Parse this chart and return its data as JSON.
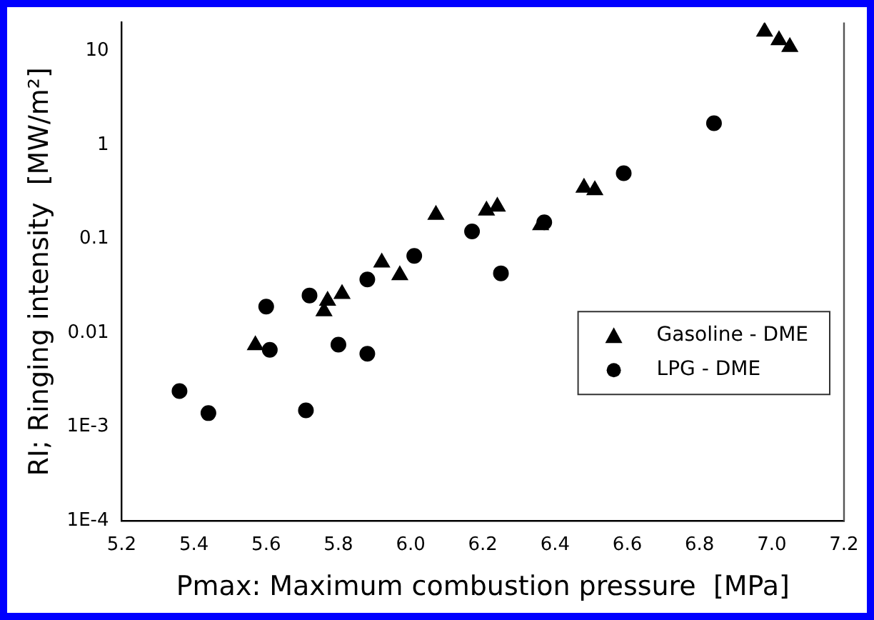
{
  "chart_data": {
    "type": "scatter",
    "xlabel": "Pmax: Maximum combustion pressure  [MPa]",
    "ylabel": "RI; Ringing intensity  [MW/m²]",
    "log": "y",
    "xlim": [
      5.2,
      7.2
    ],
    "xticks": [
      {
        "value": 5.2,
        "label": "5.2"
      },
      {
        "value": 5.4,
        "label": "5.4"
      },
      {
        "value": 5.6,
        "label": "5.6"
      },
      {
        "value": 5.8,
        "label": "5.8"
      },
      {
        "value": 6.0,
        "label": "6.0"
      },
      {
        "value": 6.2,
        "label": "6.2"
      },
      {
        "value": 6.4,
        "label": "6.4"
      },
      {
        "value": 6.6,
        "label": "6.6"
      },
      {
        "value": 6.8,
        "label": "6.8"
      },
      {
        "value": 7.0,
        "label": "7.0"
      },
      {
        "value": 7.2,
        "label": "7.2"
      }
    ],
    "ylim": [
      0.0001,
      20
    ],
    "yticks": [
      {
        "value": 0.0001,
        "label": "1E-4"
      },
      {
        "value": 0.001,
        "label": "1E-3"
      },
      0.01,
      0.1,
      1,
      10
    ],
    "grid": false,
    "legend": "right",
    "series": [
      {
        "name": "Gasoline - DME",
        "color": "#000000",
        "marker": "triangle",
        "x": [
          5.57,
          5.76,
          5.77,
          5.81,
          5.92,
          5.97,
          6.07,
          6.21,
          6.24,
          6.36,
          6.48,
          6.51,
          6.98,
          7.02,
          7.05
        ],
        "values": [
          0.0074,
          0.017,
          0.022,
          0.026,
          0.056,
          0.041,
          0.18,
          0.2,
          0.22,
          0.14,
          0.35,
          0.33,
          16,
          13,
          11
        ]
      },
      {
        "name": "LPG - DME",
        "color": "#000000",
        "marker": "circle",
        "x": [
          5.36,
          5.44,
          5.6,
          5.61,
          5.71,
          5.72,
          5.8,
          5.88,
          5.88,
          6.01,
          6.17,
          6.25,
          6.37,
          6.59,
          6.84
        ],
        "values": [
          0.0024,
          0.0014,
          0.019,
          0.0066,
          0.0015,
          0.025,
          0.0075,
          0.006,
          0.037,
          0.066,
          0.12,
          0.043,
          0.15,
          0.5,
          1.7
        ]
      }
    ]
  }
}
